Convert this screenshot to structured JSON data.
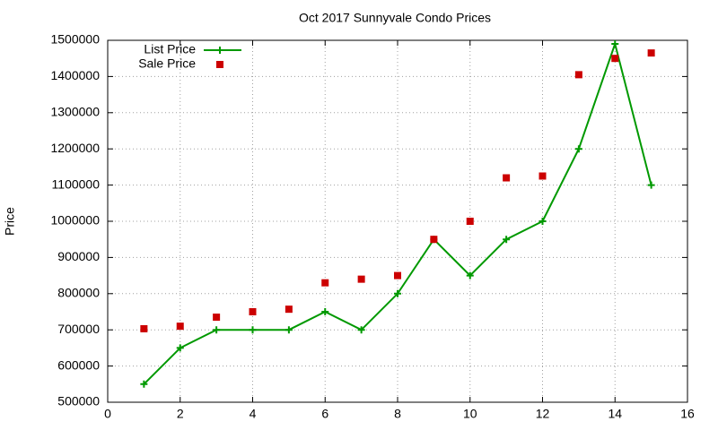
{
  "chart_data": {
    "type": "line",
    "title": "Oct 2017 Sunnyvale Condo Prices",
    "y_label": "Price",
    "x": [
      1,
      2,
      3,
      4,
      5,
      6,
      7,
      8,
      9,
      10,
      11,
      12,
      13,
      14,
      15
    ],
    "series": [
      {
        "name": "List Price",
        "color": "#009900",
        "line": true,
        "marker": "plus",
        "values": [
          550000,
          650000,
          700000,
          700000,
          700000,
          750000,
          700000,
          800000,
          950000,
          850000,
          950000,
          1000000,
          1200000,
          1490000,
          1100000
        ]
      },
      {
        "name": "Sale Price",
        "color": "#cc0000",
        "line": false,
        "marker": "square",
        "values": [
          703000,
          710000,
          735000,
          750000,
          757000,
          830000,
          840000,
          850000,
          950000,
          1000000,
          1120000,
          1125000,
          1405000,
          1450000,
          1465000
        ]
      }
    ],
    "xlim": [
      0,
      16
    ],
    "xticks": [
      0,
      2,
      4,
      6,
      8,
      10,
      12,
      14,
      16
    ],
    "ylim": [
      500000,
      1500000
    ],
    "yticks": [
      500000,
      600000,
      700000,
      800000,
      900000,
      1000000,
      1100000,
      1200000,
      1300000,
      1400000,
      1500000
    ],
    "grid": true,
    "legend": "top-left"
  }
}
